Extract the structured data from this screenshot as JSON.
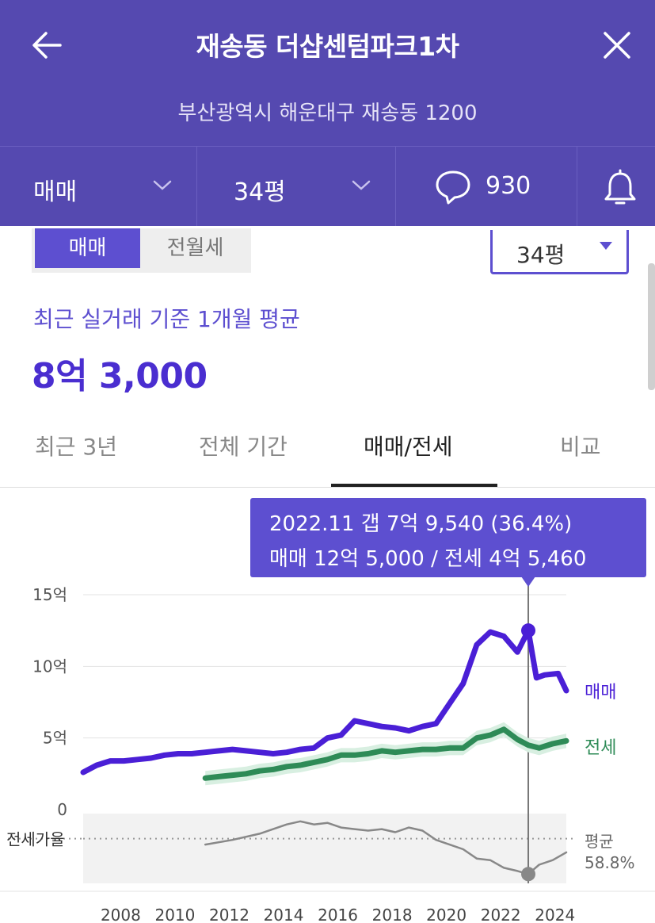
{
  "header": {
    "title": "재송동 더샵센텀파크1차",
    "address": "부산광역시 해운대구 재송동 1200",
    "filters": {
      "trade_type": "매매",
      "size": "34평",
      "comment_count": "930"
    }
  },
  "toggle": {
    "options": [
      "매매",
      "전월세"
    ],
    "selected": "매매"
  },
  "size_select": {
    "value": "34평"
  },
  "summary": {
    "caption": "최근 실거래 기준 1개월 평균",
    "price": "8억 3,000"
  },
  "tabs": [
    {
      "label": "최근 3년",
      "active": false
    },
    {
      "label": "전체 기간",
      "active": false
    },
    {
      "label": "매매/전세",
      "active": true
    },
    {
      "label": "비교",
      "active": false
    }
  ],
  "tooltip": {
    "line1": "2022.11  갭 7억 9,540 (36.4%)",
    "line2": "매매 12억 5,000 / 전세 4억 5,460"
  },
  "chart_data": {
    "type": "line",
    "y_ticks": [
      "15억",
      "10억",
      "5억",
      "0"
    ],
    "ylim": [
      0,
      15
    ],
    "x_ticks": [
      "2008",
      "2010",
      "2012",
      "2014",
      "2016",
      "2018",
      "2020",
      "2022",
      "2024"
    ],
    "ratio_label": "전세가율",
    "avg_label": "평균",
    "avg_value": "58.8%",
    "colors": {
      "sale": "#4a1fd6",
      "jeonse": "#2e8b57",
      "ratio": "#888888"
    },
    "series": [
      {
        "name": "매매",
        "x": [
          2006.5,
          2007.0,
          2007.5,
          2008.0,
          2008.5,
          2009.0,
          2009.5,
          2010.0,
          2010.5,
          2011.0,
          2011.5,
          2012.0,
          2012.5,
          2013.0,
          2013.5,
          2014.0,
          2014.5,
          2015.0,
          2015.5,
          2016.0,
          2016.5,
          2017.0,
          2017.5,
          2018.0,
          2018.5,
          2019.0,
          2019.5,
          2020.0,
          2020.5,
          2021.0,
          2021.5,
          2022.0,
          2022.5,
          2022.9,
          2023.2,
          2023.5,
          2024.0,
          2024.3
        ],
        "values": [
          2.6,
          3.1,
          3.4,
          3.4,
          3.5,
          3.6,
          3.8,
          3.9,
          3.9,
          4.0,
          4.1,
          4.2,
          4.1,
          4.0,
          3.9,
          4.0,
          4.2,
          4.3,
          5.0,
          5.2,
          6.2,
          6.0,
          5.8,
          5.7,
          5.5,
          5.8,
          6.0,
          7.4,
          8.8,
          11.5,
          12.4,
          12.1,
          11.0,
          12.5,
          9.2,
          9.4,
          9.5,
          8.3
        ]
      },
      {
        "name": "전세",
        "x": [
          2011.0,
          2011.5,
          2012.0,
          2012.5,
          2013.0,
          2013.5,
          2014.0,
          2014.5,
          2015.0,
          2015.5,
          2016.0,
          2016.5,
          2017.0,
          2017.5,
          2018.0,
          2018.5,
          2019.0,
          2019.5,
          2020.0,
          2020.5,
          2021.0,
          2021.5,
          2022.0,
          2022.5,
          2022.9,
          2023.3,
          2023.8,
          2024.3
        ],
        "values": [
          2.2,
          2.3,
          2.4,
          2.5,
          2.7,
          2.8,
          3.0,
          3.1,
          3.3,
          3.5,
          3.8,
          3.8,
          3.9,
          4.1,
          4.0,
          4.1,
          4.2,
          4.2,
          4.3,
          4.3,
          5.0,
          5.2,
          5.6,
          4.9,
          4.5,
          4.3,
          4.6,
          4.8
        ]
      },
      {
        "name": "전세가율",
        "x": [
          2011.0,
          2012.0,
          2013.0,
          2014.0,
          2014.5,
          2015.0,
          2015.5,
          2016.0,
          2016.5,
          2017.0,
          2017.5,
          2018.0,
          2018.5,
          2019.0,
          2019.5,
          2020.0,
          2020.5,
          2021.0,
          2021.5,
          2022.0,
          2022.5,
          2022.9,
          2023.3,
          2023.8,
          2024.3
        ],
        "values": [
          55,
          58,
          62,
          68,
          70,
          68,
          69,
          66,
          65,
          64,
          65,
          63,
          66,
          64,
          58,
          55,
          52,
          46,
          45,
          40,
          38,
          36,
          42,
          45,
          50
        ]
      }
    ]
  }
}
